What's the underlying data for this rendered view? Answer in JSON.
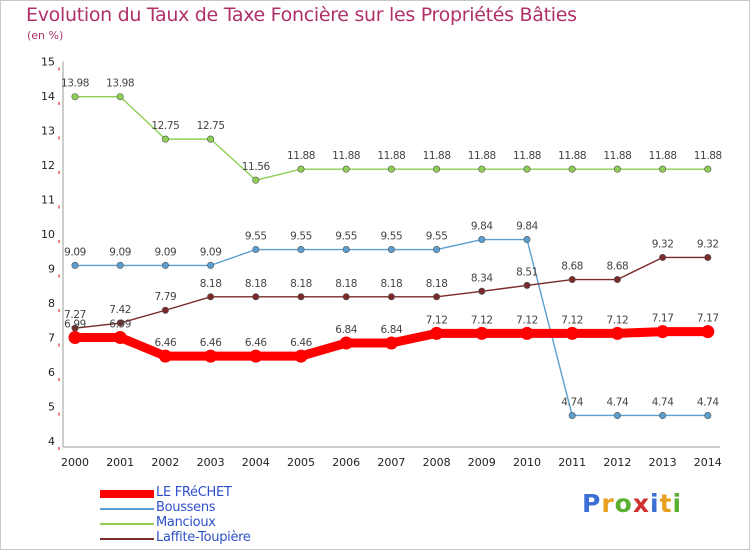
{
  "chart_data": {
    "type": "line",
    "title": "Evolution du Taux de Taxe Foncière sur les Propriétés Bâties",
    "subtitle": "(en %)",
    "x": [
      "2000",
      "2001",
      "2002",
      "2003",
      "2004",
      "2005",
      "2006",
      "2007",
      "2008",
      "2009",
      "2010",
      "2011",
      "2012",
      "2013",
      "2014"
    ],
    "yticks": [
      "4",
      "5",
      "6",
      "7",
      "8",
      "9",
      "10",
      "11",
      "12",
      "13",
      "14",
      "15"
    ],
    "ylim": [
      4,
      15
    ],
    "grid": false,
    "legend_position": "bottom-left",
    "series": [
      {
        "name": "LE FRéCHET",
        "color": "#ff0000",
        "values": [
          7.0,
          7.0,
          6.46,
          6.46,
          6.46,
          6.46,
          6.84,
          6.84,
          7.12,
          7.12,
          7.12,
          7.12,
          7.12,
          7.17,
          7.17
        ],
        "labels": [
          "",
          "",
          "6.46",
          "6.46",
          "6.46",
          "6.46",
          "6.84",
          "6.84",
          "7.12",
          "7.12",
          "7.12",
          "7.12",
          "7.12",
          "7.17",
          "7.17"
        ]
      },
      {
        "name": "Boussens",
        "color": "#5a9fd0",
        "values": [
          9.09,
          9.09,
          9.09,
          9.09,
          9.55,
          9.55,
          9.55,
          9.55,
          9.55,
          9.84,
          9.84,
          4.74,
          4.74,
          4.74,
          4.74
        ],
        "labels": [
          "9.09",
          "9.09",
          "9.09",
          "9.09",
          "9.55",
          "9.55",
          "9.55",
          "9.55",
          "9.55",
          "9.84",
          "9.84",
          "4.74",
          "4.74",
          "4.74",
          "4.74"
        ]
      },
      {
        "name": "Mancioux",
        "color": "#8fcf55",
        "values": [
          13.98,
          13.98,
          12.75,
          12.75,
          11.56,
          11.88,
          11.88,
          11.88,
          11.88,
          11.88,
          11.88,
          11.88,
          11.88,
          11.88,
          11.88
        ],
        "labels": [
          "13.98",
          "13.98",
          "12.75",
          "12.75",
          "11.56",
          "11.88",
          "11.88",
          "11.88",
          "11.88",
          "11.88",
          "11.88",
          "11.88",
          "11.88",
          "11.88",
          "11.88"
        ]
      },
      {
        "name": "Laffite-Toupière",
        "color": "#7a2a2a",
        "values": [
          7.27,
          7.42,
          7.79,
          8.18,
          8.18,
          8.18,
          8.18,
          8.18,
          8.18,
          8.34,
          8.51,
          8.68,
          8.68,
          9.32,
          9.32
        ],
        "labels": [
          "7.27",
          "7.42",
          "7.79",
          "8.18",
          "8.18",
          "8.18",
          "8.18",
          "8.18",
          "8.18",
          "8.34",
          "8.51",
          "8.68",
          "8.68",
          "9.32",
          "9.32"
        ]
      }
    ],
    "extra_labels": [
      "6.99",
      "6.99"
    ]
  },
  "branding": {
    "letters": [
      "P",
      "r",
      "o",
      "x",
      "i",
      "t",
      "i"
    ],
    "colors": [
      "#3b6fd6",
      "#e8a020",
      "#5ab030",
      "#d03030",
      "#3b6fd6",
      "#e8a020",
      "#5ab030"
    ]
  }
}
